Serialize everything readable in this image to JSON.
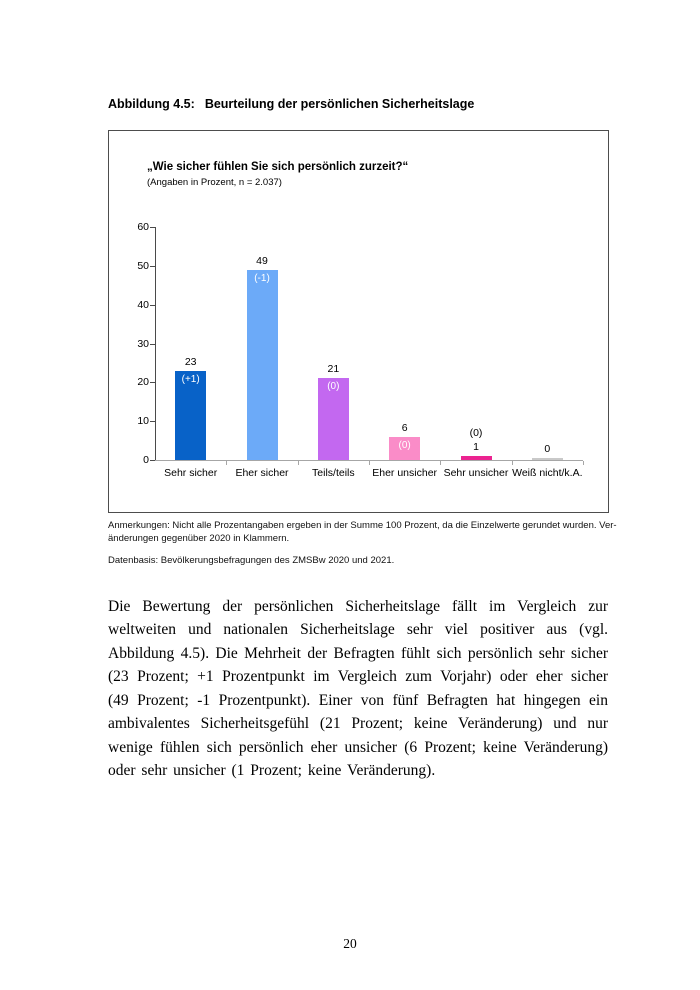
{
  "page": {
    "figure_caption": {
      "label": "Abbildung 4.5:",
      "title": "Beurteilung der persönlichen Sicherheitslage"
    },
    "page_number": "20"
  },
  "chart": {
    "title": "„Wie sicher fühlen Sie sich persönlich zurzeit?“",
    "subtitle": "(Angaben in Prozent, n = 2.037)"
  },
  "chart_data": {
    "type": "bar",
    "title": "„Wie sicher fühlen Sie sich persönlich zurzeit?“",
    "subtitle": "(Angaben in Prozent, n = 2.037)",
    "categories": [
      "Sehr sicher",
      "Eher sicher",
      "Teils/teils",
      "Eher unsicher",
      "Sehr unsicher",
      "Weiß nicht/k.A."
    ],
    "values": [
      23,
      49,
      21,
      6,
      1,
      0
    ],
    "change_labels": [
      "(+1)",
      "(-1)",
      "(0)",
      "(0)",
      "(0)",
      ""
    ],
    "change_positions": [
      "inside",
      "inside",
      "inside",
      "inside",
      "above",
      "none"
    ],
    "bar_colors": [
      "#0862C8",
      "#6CAAF8",
      "#C368F0",
      "#FA8CC8",
      "#EB2390",
      "#C9C9C9"
    ],
    "ylim": [
      0,
      60
    ],
    "yticks": [
      0,
      10,
      20,
      30,
      40,
      50,
      60
    ],
    "xlabel": "",
    "ylabel": "",
    "grid": false,
    "legend": "none",
    "axis_color": "#4a4a4a",
    "baseline_color": "#a6a6a6"
  },
  "notes": {
    "anmerkungen_lines": [
      "Anmerkungen: Nicht alle Prozentangaben ergeben in der Summe 100 Prozent, da die Einzelwerte gerundet wurden. Ver-",
      "änderungen gegenüber 2020 in Klammern."
    ],
    "datenbasis": "Datenbasis: Bevölkerungsbefragungen des ZMSBw 2020 und 2021."
  },
  "body": {
    "paragraph": "Die Bewertung der persönlichen Sicherheitslage fällt im Vergleich zur weltweiten und nationalen Sicherheitslage sehr viel positiver aus (vgl. Abbildung 4.5). Die Mehrheit der Befragten fühlt sich persönlich sehr sicher (23 Prozent; +1 Prozentpunkt im Vergleich zum Vorjahr) oder eher sicher (49 Prozent; -1 Prozentpunkt). Einer von fünf Befragten hat hingegen ein ambivalentes Sicherheitsgefühl (21 Prozent; keine Veränderung) und nur wenige fühlen sich persönlich eher unsicher (6 Prozent; keine Veränderung) oder sehr unsicher (1 Prozent; keine Veränderung)."
  }
}
